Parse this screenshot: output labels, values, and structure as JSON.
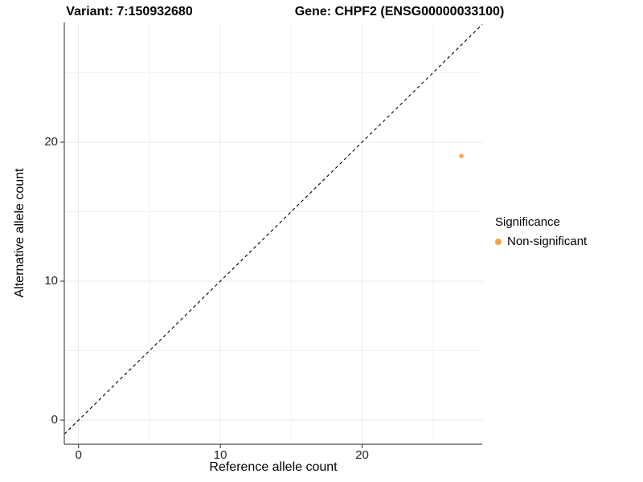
{
  "figure": {
    "title_left": "Variant: 7:150932680",
    "title_right": "Gene: CHPF2 (ENSG00000033100)"
  },
  "axes": {
    "x": {
      "label": "Reference allele count",
      "ticks": [
        "0",
        "10",
        "20"
      ]
    },
    "y": {
      "label": "Alternative allele count",
      "ticks": [
        "0",
        "10",
        "20"
      ]
    }
  },
  "legend": {
    "title": "Significance",
    "items": [
      {
        "label": "Non-significant",
        "color": "#F9A242"
      }
    ]
  },
  "colors": {
    "background": "#FFFFFF",
    "grid_major": "#E8E8E8",
    "grid_minor": "#F3F3F3",
    "axis": "#4D4D4D",
    "tick_label": "#262626",
    "reference_line": "#000000",
    "point": "#F9A242"
  },
  "chart_data": {
    "type": "scatter",
    "title": "Variant: 7:150932680 — Gene: CHPF2 (ENSG00000033100)",
    "xlabel": "Reference allele count",
    "ylabel": "Alternative allele count",
    "series": [
      {
        "name": "Non-significant",
        "color": "#F9A242",
        "points": [
          [
            27,
            19
          ]
        ]
      }
    ],
    "reference_line": {
      "type": "identity y=x",
      "style": "dashed",
      "color": "#000000"
    },
    "x_major_ticks": [
      0,
      10,
      20
    ],
    "y_major_ticks": [
      0,
      10,
      20
    ],
    "x_minor_gridlines": [
      5,
      15,
      25
    ],
    "y_minor_gridlines": [
      5,
      15,
      25
    ],
    "xlim": [
      -1.0,
      28.47
    ],
    "ylim": [
      -1.73,
      28.61
    ],
    "grid": true,
    "legend_title": "Significance",
    "legend_position": "right"
  }
}
